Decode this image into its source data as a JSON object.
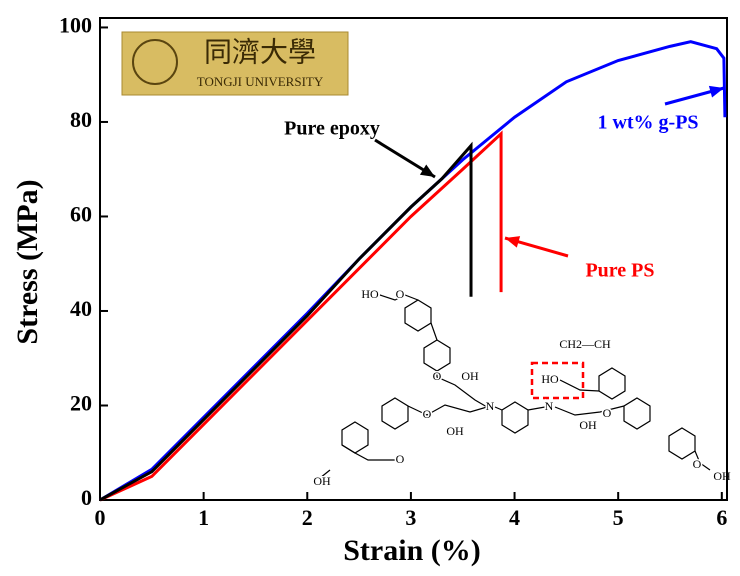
{
  "chart_data": {
    "type": "line",
    "xlabel": "Strain (%)",
    "ylabel": "Stress (MPa)",
    "xlim": [
      0,
      6.05
    ],
    "ylim": [
      0,
      102
    ],
    "xticks": [
      0,
      1,
      2,
      3,
      4,
      5,
      6
    ],
    "yticks": [
      0,
      20,
      40,
      60,
      80,
      100
    ],
    "series": [
      {
        "name": "Pure epoxy",
        "color": "#000000",
        "x": [
          0,
          0.5,
          1,
          1.5,
          2,
          2.5,
          3,
          3.3,
          3.58,
          3.58
        ],
        "values": [
          0,
          6,
          17,
          28,
          39,
          51,
          62,
          68,
          75,
          43
        ]
      },
      {
        "name": "Pure PS",
        "color": "#ff0000",
        "x": [
          0,
          0.5,
          1,
          1.5,
          2,
          2.5,
          3,
          3.5,
          3.87,
          3.87
        ],
        "values": [
          0,
          5,
          16,
          27,
          38,
          49,
          60,
          70,
          77.5,
          44
        ]
      },
      {
        "name": "1 wt% g-PS",
        "color": "#0000ff",
        "x": [
          0,
          0.5,
          1,
          1.5,
          2,
          2.5,
          3,
          3.5,
          4,
          4.5,
          5,
          5.5,
          5.7,
          5.95,
          6.02,
          6.03
        ],
        "values": [
          0,
          6.5,
          17.5,
          28.5,
          39.5,
          51,
          62,
          72,
          81,
          88.5,
          93,
          96,
          97,
          95.5,
          93.5,
          81
        ]
      }
    ],
    "logo": {
      "title": "同濟大學",
      "subtitle": "TONGJI UNIVERSITY"
    },
    "structure_labels": [
      "HO",
      "O",
      "O",
      "OH",
      "N",
      "N",
      "O",
      "OH",
      "O",
      "OH",
      "CH2—CH",
      "HO",
      "OH",
      "O",
      "O",
      "OH"
    ]
  }
}
